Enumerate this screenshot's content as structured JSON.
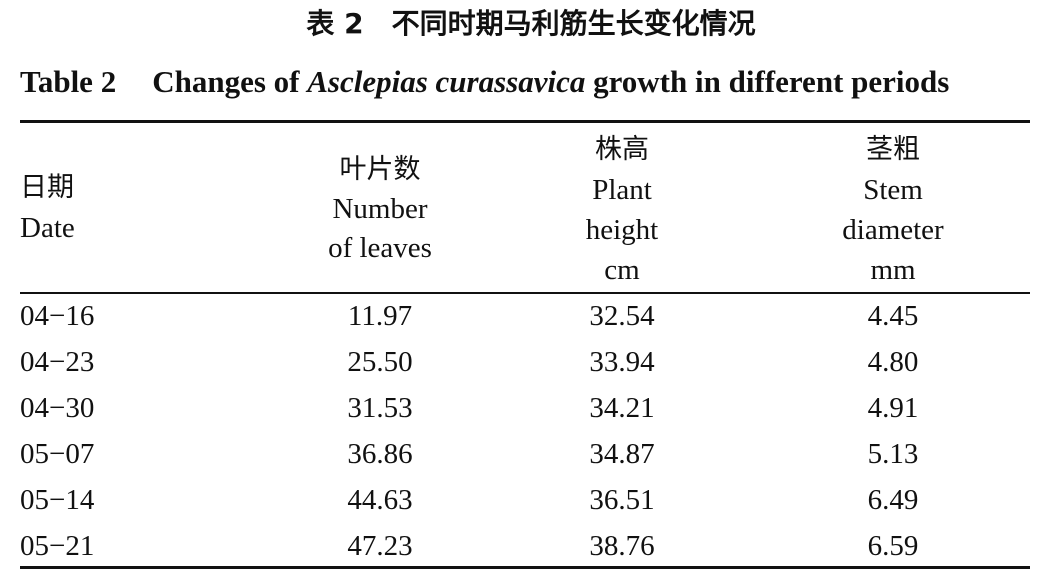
{
  "title_cn": "表 2　不同时期马利筋生长变化情况",
  "title_en": {
    "label": "Table 2",
    "pre": "Changes of",
    "species": "Asclepias curassavica",
    "post": "growth in different periods"
  },
  "table": {
    "headers": [
      {
        "cn": "日期",
        "en": [
          "Date"
        ]
      },
      {
        "cn": "叶片数",
        "en": [
          "Number",
          "of leaves"
        ]
      },
      {
        "cn": "株高",
        "en": [
          "Plant",
          "height",
          "cm"
        ]
      },
      {
        "cn": "茎粗",
        "en": [
          "Stem",
          "diameter",
          "mm"
        ]
      }
    ],
    "rows": [
      [
        "04−16",
        "11.97",
        "32.54",
        "4.45"
      ],
      [
        "04−23",
        "25.50",
        "33.94",
        "4.80"
      ],
      [
        "04−30",
        "31.53",
        "34.21",
        "4.91"
      ],
      [
        "05−07",
        "36.86",
        "34.87",
        "5.13"
      ],
      [
        "05−14",
        "44.63",
        "36.51",
        "6.49"
      ],
      [
        "05−21",
        "47.23",
        "38.76",
        "6.59"
      ]
    ]
  }
}
